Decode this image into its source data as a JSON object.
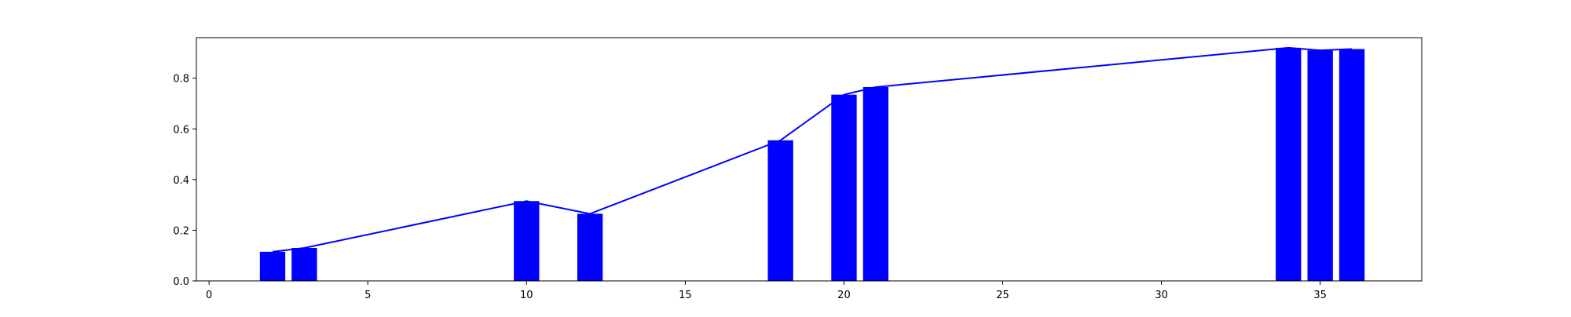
{
  "chart_data": {
    "type": "bar",
    "title": "",
    "xlabel": "",
    "ylabel": "",
    "xlim": [
      -0.4,
      38.2
    ],
    "ylim": [
      0.0,
      0.96
    ],
    "xticks": [
      0,
      5,
      10,
      15,
      20,
      25,
      30,
      35
    ],
    "xtick_labels": [
      "0",
      "5",
      "10",
      "15",
      "20",
      "25",
      "30",
      "35"
    ],
    "yticks": [
      0.0,
      0.2,
      0.4,
      0.6,
      0.8
    ],
    "ytick_labels": [
      "0.0",
      "0.2",
      "0.4",
      "0.6",
      "0.8"
    ],
    "grid": false,
    "legend": "none",
    "bar_width": 0.8,
    "x": [
      2,
      3,
      10,
      12,
      18,
      20,
      21,
      34,
      35,
      36
    ],
    "values": [
      0.115,
      0.13,
      0.315,
      0.265,
      0.555,
      0.735,
      0.765,
      0.92,
      0.91,
      0.915
    ],
    "line": {
      "x": [
        2,
        3,
        10,
        12,
        18,
        20,
        21,
        34,
        35,
        36
      ],
      "y": [
        0.115,
        0.13,
        0.315,
        0.265,
        0.555,
        0.735,
        0.765,
        0.92,
        0.91,
        0.915
      ]
    },
    "colors": {
      "bars": "#0000ff",
      "line": "#0000ff",
      "axes": "#000000",
      "background": "#ffffff"
    }
  }
}
